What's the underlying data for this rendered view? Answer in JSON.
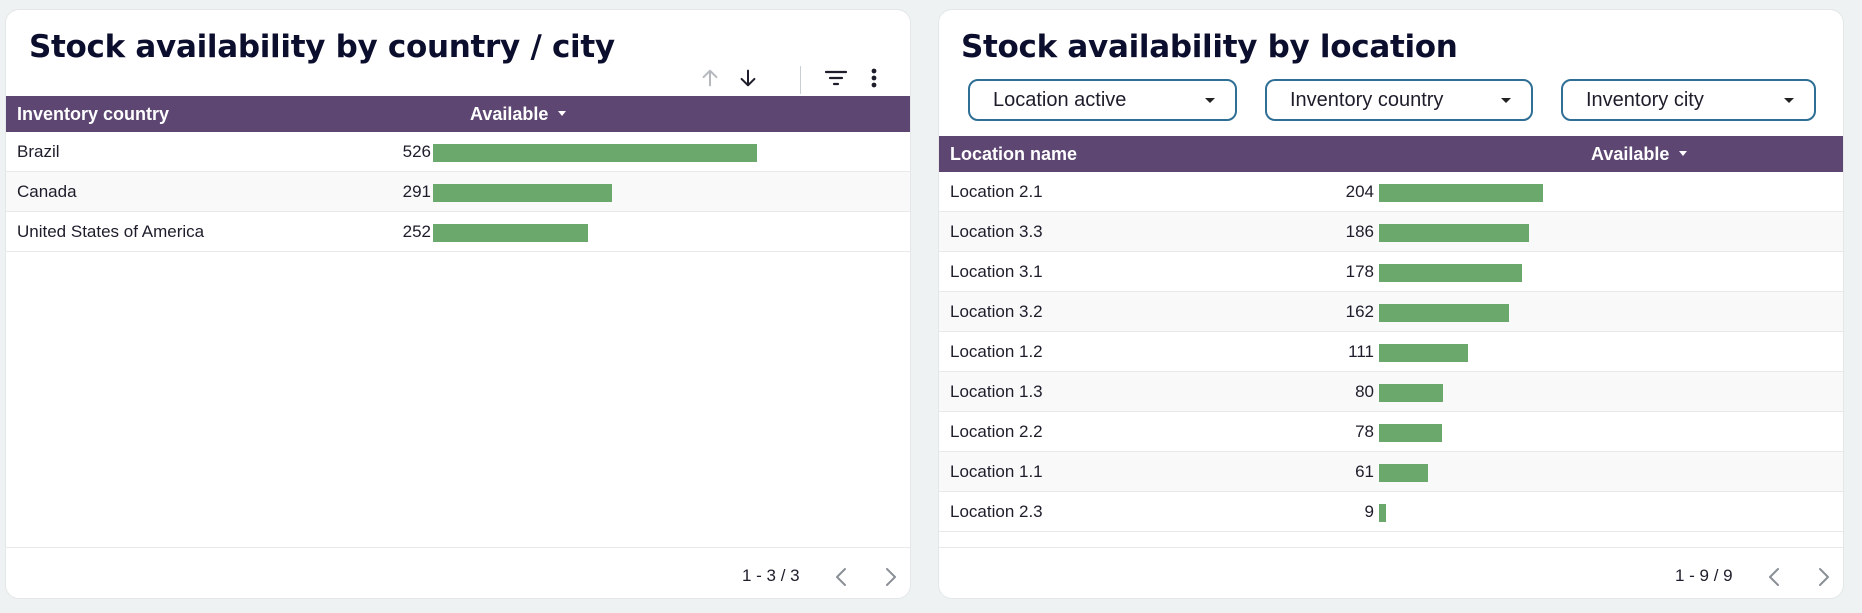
{
  "left_panel": {
    "title": "Stock availability by country / city",
    "toolbar": {
      "sort_up_icon": "arrow-up-icon",
      "sort_down_icon": "arrow-down-icon",
      "filter_icon": "filter-lines-icon",
      "more_icon": "more-vertical-icon"
    },
    "columns": [
      "Inventory country",
      "Available"
    ],
    "rows": [
      {
        "name": "Brazil",
        "value": 526
      },
      {
        "name": "Canada",
        "value": 291
      },
      {
        "name": "United States of America",
        "value": 252
      }
    ],
    "pager": "1 - 3 / 3"
  },
  "right_panel": {
    "title": "Stock availability by location",
    "filters": [
      {
        "label": "Location active"
      },
      {
        "label": "Inventory country"
      },
      {
        "label": "Inventory city"
      }
    ],
    "columns": [
      "Location name",
      "Available"
    ],
    "rows": [
      {
        "name": "Location 2.1",
        "value": 204
      },
      {
        "name": "Location 3.3",
        "value": 186
      },
      {
        "name": "Location 3.1",
        "value": 178
      },
      {
        "name": "Location 3.2",
        "value": 162
      },
      {
        "name": "Location 1.2",
        "value": 111
      },
      {
        "name": "Location 1.3",
        "value": 80
      },
      {
        "name": "Location 2.2",
        "value": 78
      },
      {
        "name": "Location 1.1",
        "value": 61
      },
      {
        "name": "Location 2.3",
        "value": 9
      }
    ],
    "pager": "1 - 9 / 9"
  },
  "colors": {
    "header_bg": "#5e4672",
    "bar": "#6aa86b",
    "filter_border": "#2f6f95",
    "title": "#0c0e2e"
  }
}
